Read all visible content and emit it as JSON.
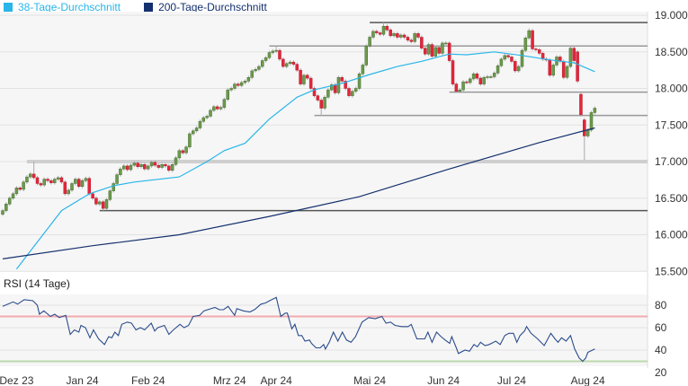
{
  "legend": [
    {
      "label": "38-Tage-Durchschnitt",
      "color": "#29b6e8"
    },
    {
      "label": "200-Tage-Durchschnitt",
      "color": "#14306e"
    }
  ],
  "chart_data": [
    {
      "type": "candlestick",
      "title": "",
      "ylim": [
        15500,
        19000
      ],
      "y_ticks": [
        {
          "value": 19000,
          "label": "19.000"
        },
        {
          "value": 18500,
          "label": "18.500"
        },
        {
          "value": 18000,
          "label": "18.000"
        },
        {
          "value": 17500,
          "label": "17.500"
        },
        {
          "value": 17000,
          "label": "17.000"
        },
        {
          "value": 16500,
          "label": "16.500"
        },
        {
          "value": 16000,
          "label": "16.000"
        },
        {
          "value": 15500,
          "label": "15.500"
        }
      ],
      "x_days": 172,
      "close": [
        16330,
        16420,
        16500,
        16560,
        16640,
        16620,
        16720,
        16790,
        16830,
        16780,
        16700,
        16680,
        16760,
        16740,
        16710,
        16760,
        16780,
        16720,
        16560,
        16610,
        16700,
        16760,
        16660,
        16740,
        16770,
        16560,
        16500,
        16420,
        16450,
        16360,
        16480,
        16600,
        16700,
        16820,
        16900,
        16940,
        16890,
        16950,
        16980,
        16930,
        16960,
        16900,
        16940,
        16990,
        16950,
        16920,
        16960,
        16940,
        16880,
        16960,
        17050,
        17150,
        17120,
        17200,
        17380,
        17420,
        17460,
        17550,
        17600,
        17620,
        17700,
        17750,
        17720,
        17740,
        17850,
        17980,
        18000,
        18060,
        18040,
        18080,
        18100,
        18150,
        18240,
        18260,
        18300,
        18380,
        18420,
        18490,
        18510,
        18520,
        18400,
        18300,
        18340,
        18360,
        18330,
        18250,
        18060,
        18180,
        18140,
        18000,
        17900,
        17840,
        17730,
        17880,
        17980,
        18050,
        17940,
        18150,
        18100,
        18000,
        17900,
        17960,
        18000,
        18200,
        18320,
        18580,
        18700,
        18780,
        18760,
        18740,
        18850,
        18800,
        18720,
        18750,
        18700,
        18730,
        18700,
        18660,
        18640,
        18750,
        18700,
        18550,
        18470,
        18600,
        18440,
        18560,
        18480,
        18620,
        18620,
        18380,
        18060,
        17960,
        17980,
        18090,
        18080,
        18130,
        18200,
        18140,
        18060,
        18150,
        18160,
        18160,
        18210,
        18310,
        18400,
        18450,
        18430,
        18370,
        18240,
        18300,
        18520,
        18690,
        18790,
        18540,
        18530,
        18480,
        18400,
        18390,
        18180,
        18320,
        18430,
        18370,
        18150,
        18300,
        18550,
        18380,
        18100,
        17640,
        17350,
        17430,
        17670,
        17730
      ],
      "gap_opens": {
        "0": 16280,
        "166": 18500,
        "167": 17920,
        "168": 17570
      },
      "wick_extremes": [
        {
          "day": 9,
          "high": 17000
        },
        {
          "day": 29,
          "low": 16330
        },
        {
          "day": 79,
          "high": 18580
        },
        {
          "day": 92,
          "low": 17630
        },
        {
          "day": 110,
          "high": 18900
        },
        {
          "day": 131,
          "low": 17950
        },
        {
          "day": 152,
          "high": 18820
        },
        {
          "day": 168,
          "low": 17020
        }
      ],
      "series": [
        {
          "name": "38-Tage-Durchschnitt",
          "color": "#29b6e8",
          "points": [
            [
              4,
              15530
            ],
            [
              10,
              15900
            ],
            [
              17,
              16330
            ],
            [
              25,
              16560
            ],
            [
              32,
              16670
            ],
            [
              38,
              16720
            ],
            [
              51,
              16790
            ],
            [
              59,
              17000
            ],
            [
              64,
              17150
            ],
            [
              70,
              17250
            ],
            [
              77,
              17580
            ],
            [
              85,
              17880
            ],
            [
              90,
              17980
            ],
            [
              98,
              18070
            ],
            [
              106,
              18190
            ],
            [
              114,
              18300
            ],
            [
              121,
              18370
            ],
            [
              129,
              18470
            ],
            [
              134,
              18460
            ],
            [
              142,
              18500
            ],
            [
              150,
              18450
            ],
            [
              158,
              18390
            ],
            [
              165,
              18350
            ],
            [
              171,
              18230
            ]
          ]
        },
        {
          "name": "200-Tage-Durchschnitt",
          "color": "#14306e",
          "points": [
            [
              0,
              15670
            ],
            [
              26,
              15850
            ],
            [
              51,
              16000
            ],
            [
              77,
              16250
            ],
            [
              103,
              16520
            ],
            [
              129,
              16900
            ],
            [
              155,
              17260
            ],
            [
              171,
              17460
            ]
          ]
        }
      ],
      "levels": [
        {
          "value": 18900,
          "from_day": 106,
          "style": "dark"
        },
        {
          "value": 18580,
          "from_day": 77,
          "style": "grey"
        },
        {
          "value": 17950,
          "from_day": 129,
          "style": "grey"
        },
        {
          "value": 17630,
          "from_day": 90,
          "style": "grey"
        },
        {
          "value": 17000,
          "from_day": 7,
          "style": "band"
        },
        {
          "value": 16330,
          "from_day": 28,
          "style": "dark"
        }
      ]
    },
    {
      "type": "line",
      "title": "RSI (14 Tage)",
      "ylim": [
        20,
        90
      ],
      "y_ticks": [
        {
          "value": 80,
          "label": "80"
        },
        {
          "value": 60,
          "label": "60"
        },
        {
          "value": 40,
          "label": "40"
        },
        {
          "value": 20,
          "label": "20"
        }
      ],
      "thresholds": [
        {
          "value": 70,
          "color": "#f3a9ae"
        },
        {
          "value": 30,
          "color": "#bcd9ad"
        }
      ],
      "x_labels": [
        {
          "day": 4,
          "label": "Dez 23"
        },
        {
          "day": 23,
          "label": "Jan 24"
        },
        {
          "day": 42,
          "label": "Feb 24"
        },
        {
          "day": 65.5,
          "label": "Mrz 24"
        },
        {
          "day": 79,
          "label": "Apr 24"
        },
        {
          "day": 106,
          "label": "Mai 24"
        },
        {
          "day": 127.3,
          "label": "Jun 24"
        },
        {
          "day": 147,
          "label": "Jul 24"
        },
        {
          "day": 169,
          "label": "Aug 24"
        }
      ],
      "series": [
        {
          "name": "RSI",
          "color": "#2b4c8c",
          "points": [
            [
              0,
              79
            ],
            [
              3,
              83
            ],
            [
              4.3,
              81
            ],
            [
              6.2,
              85
            ],
            [
              8.7,
              84
            ],
            [
              10,
              80
            ],
            [
              10.6,
              72
            ],
            [
              11.9,
              75
            ],
            [
              13.8,
              70
            ],
            [
              15,
              72
            ],
            [
              16.3,
              69
            ],
            [
              18.2,
              71
            ],
            [
              19.5,
              54
            ],
            [
              20.7,
              58
            ],
            [
              22,
              56
            ],
            [
              22.6,
              62
            ],
            [
              23.9,
              60
            ],
            [
              25.2,
              51
            ],
            [
              26.2,
              58
            ],
            [
              27.7,
              50
            ],
            [
              29.4,
              45
            ],
            [
              30.6,
              52
            ],
            [
              31.5,
              51
            ],
            [
              32.4,
              56
            ],
            [
              33.4,
              53
            ],
            [
              34.4,
              63
            ],
            [
              36,
              65
            ],
            [
              37.2,
              64
            ],
            [
              38.5,
              58
            ],
            [
              39.8,
              60
            ],
            [
              41,
              58
            ],
            [
              42.9,
              64
            ],
            [
              43.9,
              57
            ],
            [
              44.8,
              60
            ],
            [
              46.7,
              62
            ],
            [
              48,
              54
            ],
            [
              49.3,
              58
            ],
            [
              51.2,
              63
            ],
            [
              52.4,
              60
            ],
            [
              53.7,
              62
            ],
            [
              55,
              70
            ],
            [
              56.9,
              71
            ],
            [
              58.1,
              75
            ],
            [
              61.3,
              78
            ],
            [
              62.6,
              76
            ],
            [
              63.8,
              76
            ],
            [
              65.1,
              79
            ],
            [
              67,
              71
            ],
            [
              67.6,
              77
            ],
            [
              69.5,
              75
            ],
            [
              71.4,
              74
            ],
            [
              72.7,
              76
            ],
            [
              74.6,
              81
            ],
            [
              75.9,
              82
            ],
            [
              77.1,
              84
            ],
            [
              79,
              87
            ],
            [
              80.3,
              70
            ],
            [
              81.6,
              73
            ],
            [
              82.2,
              73
            ],
            [
              83.5,
              59
            ],
            [
              84.4,
              63
            ],
            [
              85.4,
              53
            ],
            [
              86.4,
              53
            ],
            [
              87.3,
              48
            ],
            [
              88.6,
              49
            ],
            [
              89.2,
              46
            ],
            [
              90.5,
              42
            ],
            [
              91.7,
              42
            ],
            [
              92.7,
              45
            ],
            [
              93.2,
              41
            ],
            [
              94.3,
              47
            ],
            [
              95.5,
              56
            ],
            [
              96.8,
              48
            ],
            [
              98.1,
              56
            ],
            [
              99.3,
              49
            ],
            [
              100.6,
              47
            ],
            [
              101.9,
              52
            ],
            [
              103.8,
              65
            ],
            [
              105.7,
              69
            ],
            [
              107.6,
              68
            ],
            [
              109.5,
              70
            ],
            [
              110.7,
              64
            ],
            [
              112,
              65
            ],
            [
              113.3,
              62
            ],
            [
              115.2,
              61
            ],
            [
              117.1,
              61
            ],
            [
              118,
              63
            ],
            [
              119.6,
              50
            ],
            [
              120.9,
              50
            ],
            [
              121.9,
              50
            ],
            [
              122.8,
              56
            ],
            [
              124,
              47
            ],
            [
              125.3,
              56
            ],
            [
              126.6,
              52
            ],
            [
              127.8,
              49
            ],
            [
              129.1,
              46
            ],
            [
              129.7,
              52
            ],
            [
              131,
              42
            ],
            [
              131.6,
              37
            ],
            [
              133.5,
              40
            ],
            [
              134.8,
              39
            ],
            [
              136.1,
              45
            ],
            [
              137.1,
              43
            ],
            [
              138,
              47
            ],
            [
              139.3,
              44
            ],
            [
              140.5,
              45
            ],
            [
              141.8,
              47
            ],
            [
              142.4,
              48
            ],
            [
              143.7,
              45
            ],
            [
              145,
              53
            ],
            [
              146.2,
              55
            ],
            [
              147.5,
              55
            ],
            [
              148.5,
              47
            ],
            [
              149.4,
              53
            ],
            [
              150.7,
              57
            ],
            [
              151.3,
              61
            ],
            [
              152.6,
              55
            ],
            [
              154.5,
              50
            ],
            [
              156.4,
              44
            ],
            [
              158.3,
              55
            ],
            [
              159.5,
              50
            ],
            [
              160.4,
              47
            ],
            [
              161.4,
              51
            ],
            [
              162.7,
              48
            ],
            [
              164,
              53
            ],
            [
              165.2,
              41
            ],
            [
              166.5,
              33
            ],
            [
              167.5,
              30
            ],
            [
              168.4,
              33
            ],
            [
              169,
              38
            ],
            [
              171,
              41
            ]
          ]
        }
      ]
    }
  ]
}
